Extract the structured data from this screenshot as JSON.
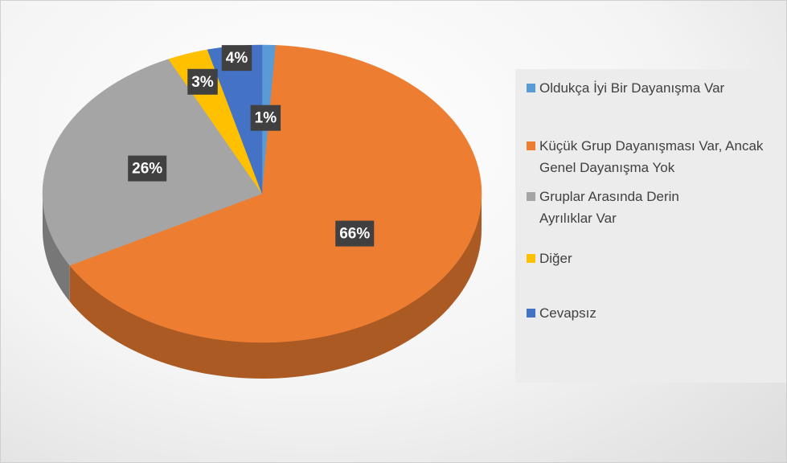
{
  "chart_data": {
    "type": "pie",
    "categories": [
      "Oldukça İyi Bir Dayanışma Var",
      "Küçük Grup Dayanışması Var, Ancak Genel Dayanışma Yok",
      "Gruplar Arasında Derin Ayrılıklar Var",
      "Diğer",
      "Cevapsız"
    ],
    "values": [
      1,
      66,
      26,
      3,
      4
    ],
    "value_labels": [
      "1%",
      "66%",
      "26%",
      "3%",
      "4%"
    ],
    "colors": [
      "#5b9bd5",
      "#ed7d31",
      "#a5a5a5",
      "#ffc000",
      "#4472c4"
    ],
    "legend": "right"
  }
}
